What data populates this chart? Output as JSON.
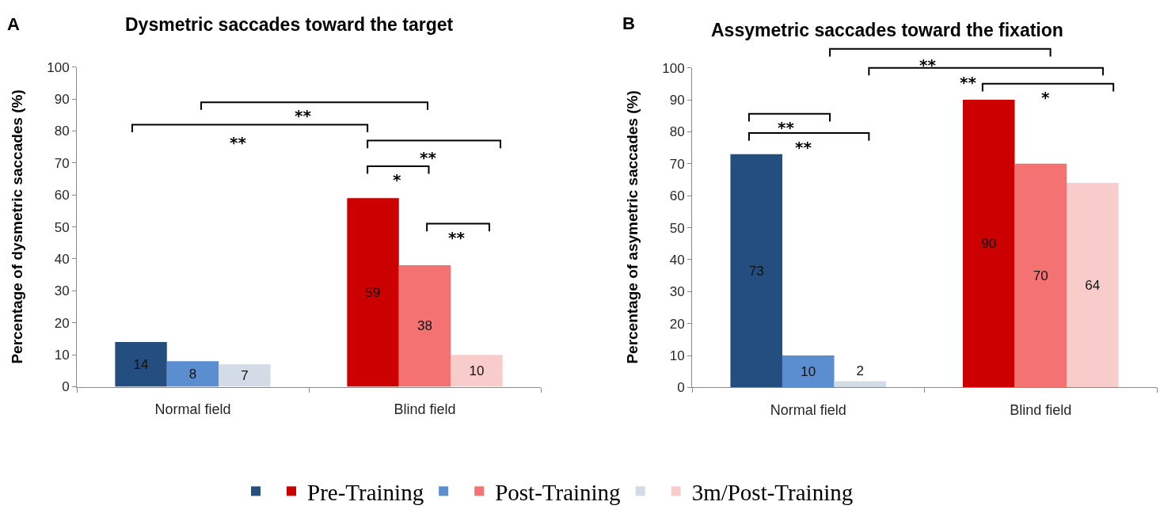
{
  "chart_data": [
    {
      "type": "bar",
      "title": "Dysmetric saccades toward the target",
      "ylabel": "Percentage of dysmetric saccades (%)",
      "categories": [
        "Normal field",
        "Blind field"
      ],
      "series": [
        {
          "name": "Pre-Training",
          "colors": [
            "#244d80",
            "#cc0000"
          ],
          "values": [
            14,
            59
          ]
        },
        {
          "name": "Post-Training",
          "colors": [
            "#5a8ed0",
            "#f47272"
          ],
          "values": [
            8,
            38
          ]
        },
        {
          "name": "3m/Post-Training",
          "colors": [
            "#d2dbe6",
            "#f9cccc"
          ],
          "values": [
            7,
            10
          ]
        }
      ],
      "ylim": [
        0,
        100
      ],
      "yticks": [
        0,
        10,
        20,
        30,
        40,
        50,
        60,
        70,
        80,
        90,
        100
      ],
      "data_labels": true,
      "legend": "bottom",
      "annotations": [
        "A",
        "**",
        "**",
        "**",
        "*",
        "**"
      ]
    },
    {
      "type": "bar",
      "title": "Assymetric saccades toward the fixation",
      "ylabel": "Percentage of asymetric saccades (%)",
      "categories": [
        "Normal field",
        "Blind field"
      ],
      "series": [
        {
          "colors": [
            "#244d80",
            "#cc0000"
          ],
          "values": [
            73,
            90
          ]
        },
        {
          "colors": [
            "#5a8ed0",
            "#f47272"
          ],
          "values": [
            10,
            70
          ]
        },
        {
          "colors": [
            "#d2dbe6",
            "#f9cccc"
          ],
          "values": [
            2,
            64
          ]
        }
      ],
      "ylim": [
        0,
        100
      ],
      "yticks": [
        0,
        10,
        20,
        30,
        40,
        50,
        60,
        70,
        80,
        90,
        100
      ],
      "data_labels": true,
      "annotations": [
        "B",
        "**",
        "**",
        "*",
        "**",
        "**"
      ]
    }
  ]
}
